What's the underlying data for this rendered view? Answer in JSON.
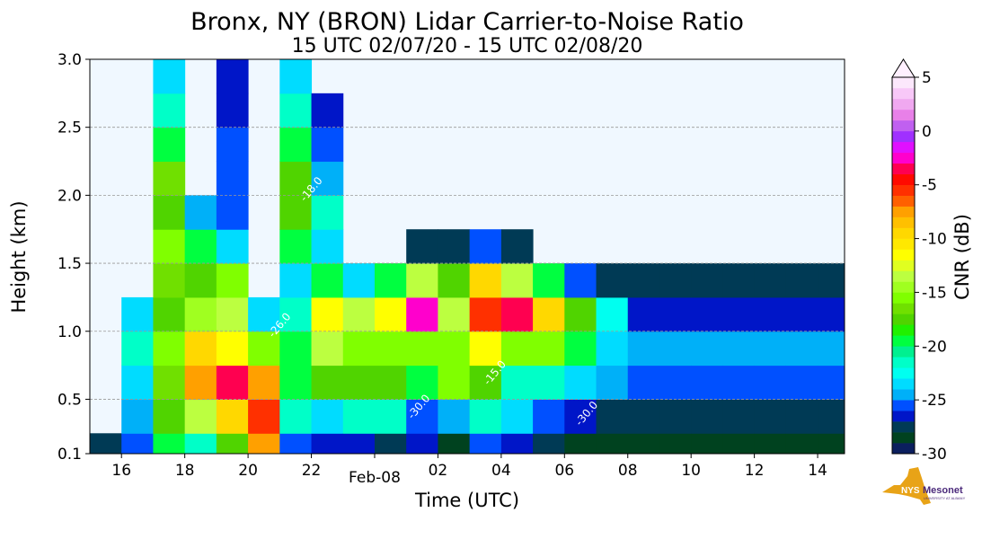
{
  "chart_data": {
    "type": "heatmap",
    "title": "Bronx, NY (BRON) Lidar Carrier-to-Noise Ratio",
    "subtitle": "15 UTC 02/07/20 - 15 UTC 02/08/20",
    "xlabel": "Time (UTC)",
    "ylabel": "Height (km)",
    "xlim": [
      15,
      38.85
    ],
    "ylim": [
      0.1,
      3.0
    ],
    "x_ticks": [
      {
        "value": 16,
        "label": "16"
      },
      {
        "value": 18,
        "label": "18"
      },
      {
        "value": 20,
        "label": "20"
      },
      {
        "value": 22,
        "label": "22"
      },
      {
        "value": 26,
        "label": "02"
      },
      {
        "value": 28,
        "label": "04"
      },
      {
        "value": 30,
        "label": "06"
      },
      {
        "value": 32,
        "label": "08"
      },
      {
        "value": 34,
        "label": "10"
      },
      {
        "value": 36,
        "label": "12"
      },
      {
        "value": 38,
        "label": "14"
      }
    ],
    "date_label": {
      "value": 24,
      "label": "Feb-08"
    },
    "y_ticks": [
      {
        "value": 0.1,
        "label": "0.1"
      },
      {
        "value": 0.5,
        "label": "0.5"
      },
      {
        "value": 1.0,
        "label": "1.0"
      },
      {
        "value": 1.5,
        "label": "1.5"
      },
      {
        "value": 2.0,
        "label": "2.0"
      },
      {
        "value": 2.5,
        "label": "2.5"
      },
      {
        "value": 3.0,
        "label": "3.0"
      }
    ],
    "grid": "horizontal dashed",
    "height_edges": [
      0.1,
      0.25,
      0.5,
      0.75,
      1.0,
      1.25,
      1.5,
      1.75,
      2.0,
      2.25,
      2.5,
      2.75,
      3.0
    ],
    "time_starts": [
      15,
      16,
      17,
      18,
      19,
      20,
      21,
      22,
      23,
      24,
      25,
      26,
      27,
      28,
      29,
      30,
      31,
      32,
      33,
      34,
      35,
      36,
      37,
      38
    ],
    "cnr_db": [
      [
        -28,
        null,
        null,
        null,
        null,
        null,
        null,
        null,
        null,
        null,
        null,
        null
      ],
      [
        -26,
        -25,
        -24,
        -22,
        -24,
        null,
        null,
        null,
        null,
        null,
        null,
        null
      ],
      [
        -20,
        -18,
        -17,
        -16,
        -18,
        -17,
        -16,
        -18,
        -17,
        -20,
        -22,
        -24
      ],
      [
        -22,
        -14,
        -8,
        -10,
        -15,
        -18,
        -20,
        -25,
        null,
        null,
        null,
        null
      ],
      [
        -18,
        -10,
        -4,
        -12,
        -14,
        -16,
        -24,
        -26,
        -26,
        -26,
        -27,
        -27
      ],
      [
        -8,
        -6,
        -8,
        -16,
        -24,
        null,
        null,
        null,
        null,
        null,
        null,
        null
      ],
      [
        -26,
        -22,
        -20,
        -20,
        -22,
        -24,
        -20,
        -18,
        -18,
        -20,
        -22,
        -24
      ],
      [
        -27,
        -24,
        -18,
        -14,
        -12,
        -20,
        -24,
        -22,
        -25,
        -26,
        -27,
        null
      ],
      [
        -27,
        -22,
        -18,
        -16,
        -14,
        -24,
        null,
        null,
        null,
        null,
        null,
        null
      ],
      [
        -28,
        -22,
        -18,
        -16,
        -12,
        -20,
        null,
        null,
        null,
        null,
        null,
        null
      ],
      [
        -27,
        -26,
        -20,
        -16,
        -3,
        -14,
        -28,
        null,
        null,
        null,
        null,
        null
      ],
      [
        -29,
        -25,
        -16,
        -16,
        -14,
        -18,
        -28,
        null,
        null,
        null,
        null,
        null
      ],
      [
        -26,
        -22,
        -18,
        -12,
        -6,
        -10,
        -26,
        null,
        null,
        null,
        null,
        null
      ],
      [
        -27,
        -24,
        -22,
        -16,
        -4,
        -14,
        -28,
        null,
        null,
        null,
        null,
        null
      ],
      [
        -28,
        -26,
        -22,
        -16,
        -10,
        -20,
        null,
        null,
        null,
        null,
        null,
        null
      ],
      [
        -29,
        -27,
        -24,
        -20,
        -18,
        -26,
        null,
        null,
        null,
        null,
        null,
        null
      ],
      [
        -29,
        -28,
        -25,
        -24,
        -23,
        -28,
        null,
        null,
        null,
        null,
        null,
        null
      ],
      [
        -29,
        -28,
        -26,
        -25,
        -27,
        -28,
        null,
        null,
        null,
        null,
        null,
        null
      ],
      [
        -29,
        -28,
        -26,
        -25,
        -27,
        -28,
        null,
        null,
        null,
        null,
        null,
        null
      ],
      [
        -29,
        -28,
        -26,
        -25,
        -27,
        -28,
        null,
        null,
        null,
        null,
        null,
        null
      ],
      [
        -29,
        -28,
        -26,
        -25,
        -27,
        -28,
        null,
        null,
        null,
        null,
        null,
        null
      ],
      [
        -29,
        -28,
        -26,
        -25,
        -27,
        -28,
        null,
        null,
        null,
        null,
        null,
        null
      ],
      [
        -29,
        -28,
        -26,
        -25,
        -27,
        -28,
        null,
        null,
        null,
        null,
        null,
        null
      ],
      [
        -29,
        -28,
        -26,
        -25,
        -27,
        -28,
        null,
        null,
        null,
        null,
        null,
        null
      ]
    ],
    "contour_labels": [
      "-30.0",
      "-26.0",
      "-18.0",
      "-15.0"
    ],
    "colorbar": {
      "label": "CNR (dB)",
      "range": [
        -30,
        5
      ],
      "extend": "max",
      "ticks": [
        5,
        0,
        -5,
        -10,
        -15,
        -20,
        -25,
        -30
      ],
      "tick_labels": [
        "5",
        "0",
        "-5",
        "-10",
        "-15",
        "-20",
        "-25",
        "-30"
      ],
      "colors": [
        "#0b1f5e",
        "#00421f",
        "#003a55",
        "#0016c8",
        "#0050ff",
        "#00b0f8",
        "#00dcff",
        "#00fff0",
        "#00ffc8",
        "#00f090",
        "#00ff40",
        "#20f000",
        "#50d400",
        "#70e000",
        "#80ff00",
        "#a0ff20",
        "#bcff40",
        "#e0ff20",
        "#ffff00",
        "#ffe800",
        "#ffd800",
        "#ffc000",
        "#ffa000",
        "#ff6000",
        "#ff3000",
        "#ff0a00",
        "#ff0050",
        "#ff00cc",
        "#e010ff",
        "#a030ff",
        "#c060f0",
        "#e880e8",
        "#f0a8f0",
        "#f8c8f8",
        "#fce8fc"
      ],
      "over_color": "#fff0ff"
    },
    "background_color": "#f0f8ff"
  },
  "logo": {
    "text": "NYS Mesonet",
    "subtext": "UNIVERSITY AT ALBANY"
  }
}
